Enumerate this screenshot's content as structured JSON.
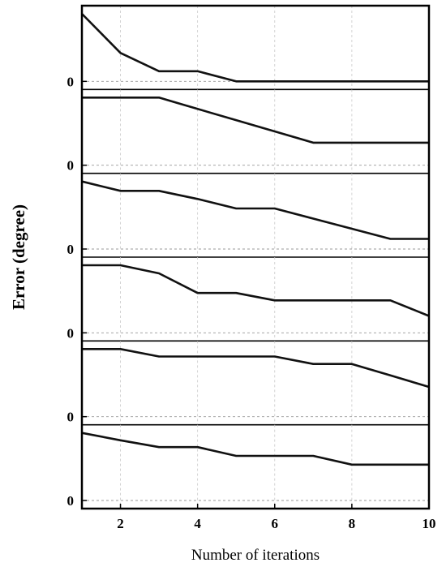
{
  "chart_data": {
    "type": "line",
    "xlabel": "Number of iterations",
    "ylabel": "Error (degree)",
    "xlim": [
      1,
      10
    ],
    "x_ticks": [
      2,
      4,
      6,
      8,
      10
    ],
    "x_tick_labels": [
      "2",
      "4",
      "6",
      "8",
      "10"
    ],
    "y_tick_label": "0",
    "grid": true,
    "x": [
      1,
      2,
      3,
      4,
      5,
      6,
      7,
      8,
      9,
      10
    ],
    "panels": [
      {
        "values": [
          1.0,
          0.42,
          0.15,
          0.15,
          0.0,
          0.0,
          0.0,
          0.0,
          0.0,
          0.0
        ]
      },
      {
        "values": [
          1.0,
          1.0,
          1.0,
          0.833,
          0.667,
          0.5,
          0.333,
          0.333,
          0.333,
          0.333
        ]
      },
      {
        "values": [
          1.0,
          0.86,
          0.86,
          0.74,
          0.6,
          0.6,
          0.45,
          0.3,
          0.15,
          0.15
        ]
      },
      {
        "values": [
          1.0,
          1.0,
          0.88,
          0.59,
          0.59,
          0.48,
          0.48,
          0.48,
          0.48,
          0.25
        ]
      },
      {
        "values": [
          1.0,
          1.0,
          0.89,
          0.89,
          0.89,
          0.89,
          0.78,
          0.78,
          0.61,
          0.44
        ]
      },
      {
        "values": [
          1.0,
          0.89,
          0.79,
          0.79,
          0.66,
          0.66,
          0.66,
          0.53,
          0.53,
          0.53
        ]
      }
    ]
  }
}
